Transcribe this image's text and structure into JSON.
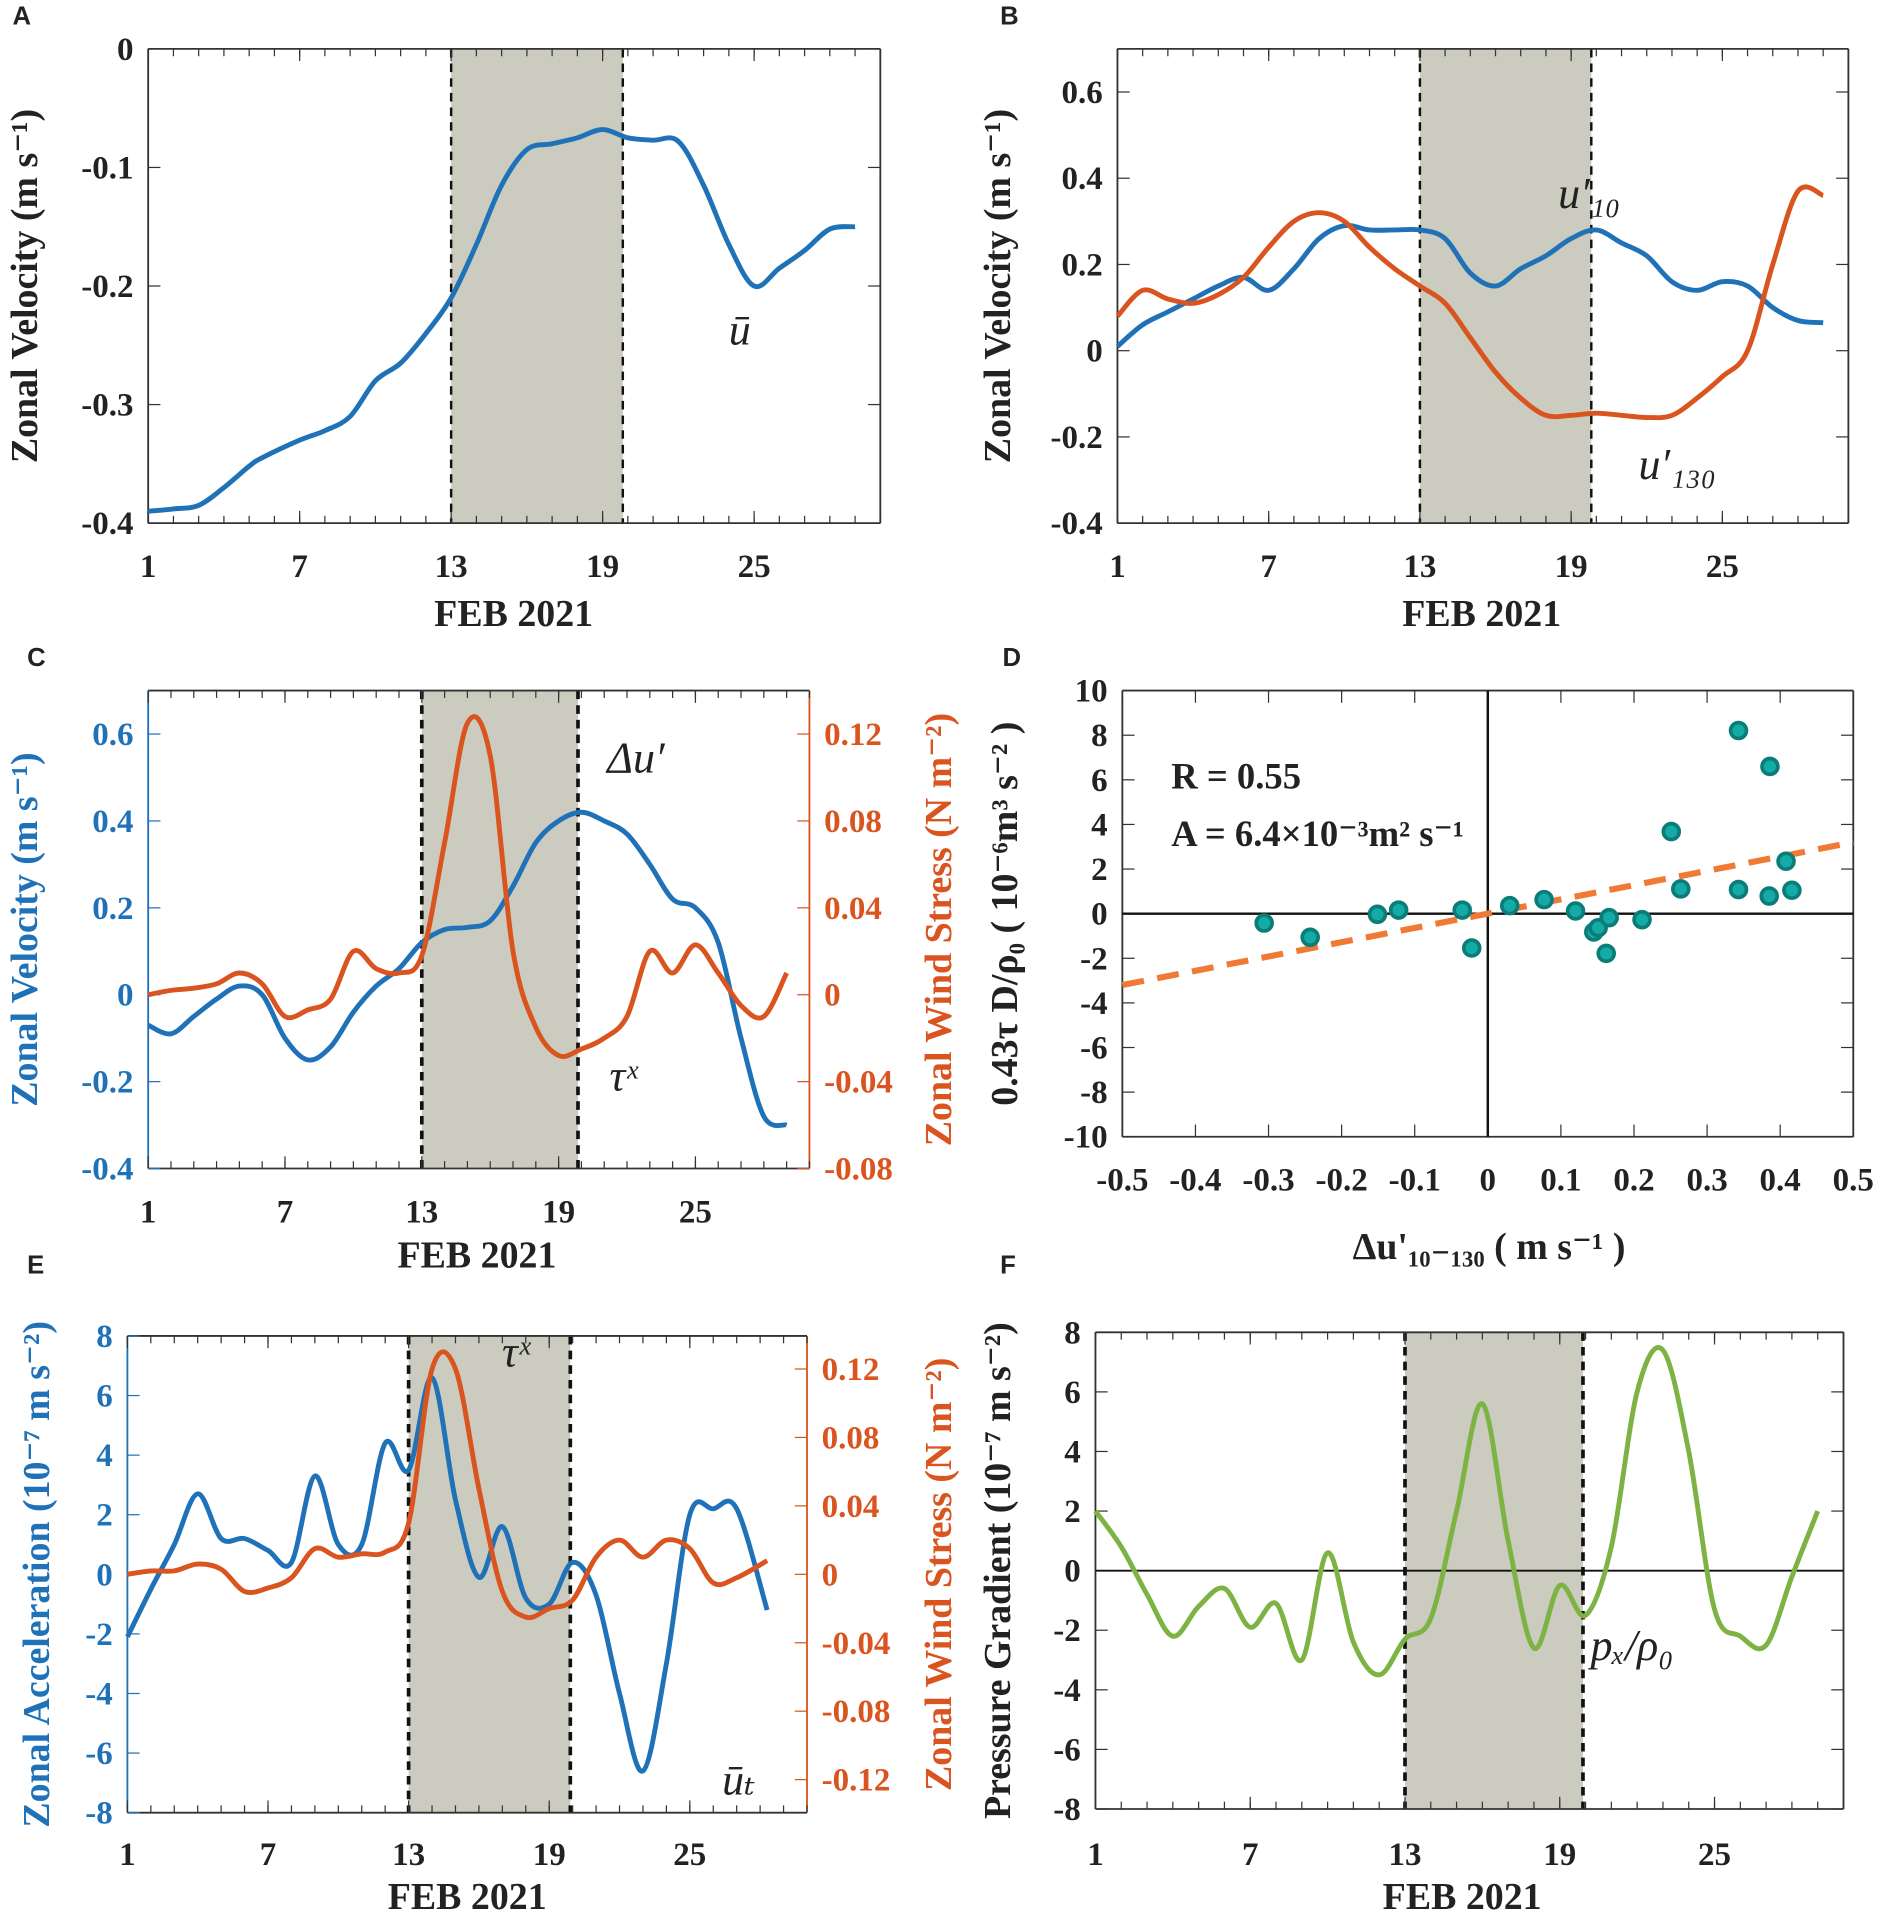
{
  "colors": {
    "blue": "#1f72b8",
    "orange": "#d9541e",
    "green": "#7cb342",
    "shade": "#cbcbbf",
    "teal": "#14aaa6",
    "teal_edge": "#0c7c78",
    "fit": "#f07a35"
  },
  "chart_data": [
    {
      "panel": "A",
      "type": "line",
      "xlabel": "FEB 2021",
      "ylabel": "Zonal Velocity (m s⁻¹)",
      "xlim": [
        1,
        30
      ],
      "ylim": [
        -0.4,
        0
      ],
      "xticks": [
        1,
        7,
        13,
        19,
        25
      ],
      "yticks": [
        0,
        -0.1,
        -0.2,
        -0.3,
        -0.4
      ],
      "ytick_labels": [
        "0",
        "-0.1",
        "-0.2",
        "-0.3",
        "-0.4"
      ],
      "shade": [
        13,
        19.8
      ],
      "series": [
        {
          "name": "ū",
          "color": "blue",
          "x": [
            1,
            2,
            3,
            4,
            5,
            5.5,
            7,
            8,
            9,
            10,
            11,
            12,
            13,
            14,
            15,
            16,
            17,
            18,
            19,
            20,
            21,
            22,
            23,
            24,
            25,
            26,
            27,
            28,
            29
          ],
          "values": [
            -0.39,
            -0.388,
            -0.385,
            -0.37,
            -0.352,
            -0.345,
            -0.33,
            -0.322,
            -0.31,
            -0.28,
            -0.265,
            -0.24,
            -0.21,
            -0.165,
            -0.115,
            -0.085,
            -0.08,
            -0.075,
            -0.068,
            -0.075,
            -0.077,
            -0.078,
            -0.115,
            -0.165,
            -0.2,
            -0.185,
            -0.17,
            -0.152,
            -0.15
          ]
        }
      ],
      "annotations": [
        "ū"
      ]
    },
    {
      "panel": "B",
      "type": "line",
      "xlabel": "FEB 2021",
      "ylabel": "Zonal Velocity (m s⁻¹)",
      "xlim": [
        1,
        30
      ],
      "ylim": [
        -0.4,
        0.7
      ],
      "xticks": [
        1,
        7,
        13,
        19,
        25
      ],
      "yticks": [
        0.6,
        0.4,
        0.2,
        0,
        -0.2,
        -0.4
      ],
      "ytick_labels": [
        "0.6",
        "0.4",
        "0.2",
        "0",
        "-0.2",
        "-0.4"
      ],
      "shade": [
        13,
        19.8
      ],
      "series": [
        {
          "name": "u′₁₀",
          "color": "blue",
          "x": [
            1,
            2,
            3,
            4,
            5,
            6,
            7,
            8,
            9,
            10,
            11,
            12,
            13,
            14,
            15,
            16,
            17,
            18,
            19,
            20,
            21,
            22,
            23,
            24,
            25,
            26,
            27,
            28,
            29
          ],
          "values": [
            0.01,
            0.06,
            0.09,
            0.12,
            0.15,
            0.17,
            0.14,
            0.19,
            0.26,
            0.29,
            0.28,
            0.28,
            0.28,
            0.26,
            0.18,
            0.15,
            0.19,
            0.22,
            0.26,
            0.28,
            0.25,
            0.22,
            0.16,
            0.14,
            0.16,
            0.15,
            0.1,
            0.07,
            0.065
          ]
        },
        {
          "name": "u′₁₃₀",
          "color": "orange",
          "x": [
            1,
            2,
            3,
            4,
            5,
            6,
            7,
            8,
            9,
            10,
            11,
            12,
            13,
            14,
            15,
            16,
            17,
            18,
            19,
            20,
            21,
            22,
            23,
            24,
            25,
            26,
            27,
            28,
            29
          ],
          "values": [
            0.08,
            0.14,
            0.12,
            0.11,
            0.13,
            0.17,
            0.24,
            0.3,
            0.32,
            0.3,
            0.24,
            0.19,
            0.15,
            0.11,
            0.03,
            -0.05,
            -0.11,
            -0.15,
            -0.15,
            -0.145,
            -0.15,
            -0.155,
            -0.15,
            -0.11,
            -0.06,
            0.0,
            0.2,
            0.37,
            0.36
          ]
        }
      ],
      "annotations": [
        "u′₁₀",
        "u′₁₃₀"
      ]
    },
    {
      "panel": "C",
      "type": "line",
      "xlabel": "FEB 2021",
      "ylabel": "Zonal Velocity (m s⁻¹)",
      "ylabel_right": "Zonal Wind Stress (N m⁻²)",
      "xlim": [
        1,
        30
      ],
      "ylim": [
        -0.4,
        0.7
      ],
      "ylim_right": [
        -0.08,
        0.14
      ],
      "xticks": [
        1,
        7,
        13,
        19,
        25
      ],
      "yticks": [
        0.6,
        0.4,
        0.2,
        0,
        -0.2,
        -0.4
      ],
      "ytick_labels": [
        "0.6",
        "0.4",
        "0.2",
        "0",
        "-0.2",
        "-0.4"
      ],
      "yticks_right": [
        0.12,
        0.08,
        0.04,
        0,
        -0.04,
        -0.08
      ],
      "ytick_labels_right": [
        "0.12",
        "0.08",
        "0.04",
        "0",
        "-0.04",
        "-0.08"
      ],
      "shade": [
        13,
        19.85
      ],
      "series": [
        {
          "name": "Δu′",
          "color": "blue",
          "axis": "left",
          "x": [
            1,
            2,
            3,
            4,
            5,
            6,
            7,
            8,
            9,
            10,
            11,
            12,
            13,
            14,
            15,
            16,
            17,
            18,
            19,
            20,
            21,
            22,
            23,
            24,
            25,
            26,
            27,
            28,
            29
          ],
          "values": [
            -0.07,
            -0.09,
            -0.05,
            -0.01,
            0.02,
            0.0,
            -0.1,
            -0.15,
            -0.12,
            -0.04,
            0.02,
            0.06,
            0.12,
            0.15,
            0.155,
            0.17,
            0.25,
            0.35,
            0.4,
            0.42,
            0.4,
            0.37,
            0.3,
            0.22,
            0.2,
            0.12,
            -0.1,
            -0.28,
            -0.3
          ]
        },
        {
          "name": "τˣ",
          "color": "orange",
          "axis": "right",
          "x": [
            1,
            2,
            3,
            4,
            5,
            6,
            7,
            8,
            9,
            10,
            11,
            12,
            13,
            14,
            15,
            16,
            17,
            18,
            19,
            20,
            21,
            22,
            23,
            24,
            25,
            26,
            27,
            28,
            29
          ],
          "values": [
            0.0,
            0.002,
            0.003,
            0.005,
            0.01,
            0.005,
            -0.01,
            -0.007,
            -0.002,
            0.02,
            0.012,
            0.01,
            0.018,
            0.07,
            0.125,
            0.11,
            0.02,
            -0.015,
            -0.028,
            -0.025,
            -0.02,
            -0.01,
            0.02,
            0.01,
            0.023,
            0.01,
            -0.005,
            -0.01,
            0.01
          ]
        }
      ],
      "annotations": [
        "Δu′",
        "τˣ"
      ]
    },
    {
      "panel": "D",
      "type": "scatter",
      "xlabel": "Δu'₁₀₋₁₃₀ ( m s⁻¹ )",
      "ylabel": "0.43τ D/ρ₀ ( 10⁻⁶m³ s⁻² )",
      "xlim": [
        -0.5,
        0.5
      ],
      "ylim": [
        -10,
        10
      ],
      "xticks": [
        -0.5,
        -0.4,
        -0.3,
        -0.2,
        -0.1,
        0,
        0.1,
        0.2,
        0.3,
        0.4,
        0.5
      ],
      "xtick_labels": [
        "-0.5",
        "-0.4",
        "-0.3",
        "-0.2",
        "-0.1",
        "0",
        "0.1",
        "0.2",
        "0.3",
        "0.4",
        "0.5"
      ],
      "yticks": [
        10,
        8,
        6,
        4,
        2,
        0,
        -2,
        -4,
        -6,
        -8,
        -10
      ],
      "ytick_labels": [
        "10",
        "8",
        "6",
        "4",
        "2",
        "0",
        "-2",
        "-4",
        "-6",
        "-8",
        "-10"
      ],
      "points": [
        [
          -0.306,
          -0.42
        ],
        [
          -0.243,
          -1.06
        ],
        [
          -0.151,
          -0.03
        ],
        [
          -0.122,
          0.16
        ],
        [
          -0.035,
          0.16
        ],
        [
          -0.022,
          -1.54
        ],
        [
          0.03,
          0.36
        ],
        [
          0.077,
          0.63
        ],
        [
          0.12,
          0.12
        ],
        [
          0.145,
          -0.82
        ],
        [
          0.151,
          -0.63
        ],
        [
          0.166,
          -0.18
        ],
        [
          0.162,
          -1.78
        ],
        [
          0.211,
          -0.27
        ],
        [
          0.251,
          3.68
        ],
        [
          0.264,
          1.11
        ],
        [
          0.343,
          8.21
        ],
        [
          0.343,
          1.08
        ],
        [
          0.386,
          6.6
        ],
        [
          0.385,
          0.79
        ],
        [
          0.408,
          2.35
        ],
        [
          0.416,
          1.05
        ]
      ],
      "fit": {
        "slope": 6.4,
        "intercept": 0
      },
      "stats": {
        "r": "R = 0.55",
        "a": "A = 6.4×10⁻³m² s⁻¹"
      }
    },
    {
      "panel": "E",
      "type": "line",
      "xlabel": "FEB 2021",
      "ylabel": "Zonal Acceleration (10⁻⁷ m s⁻²)",
      "ylabel_right": "Zonal Wind Stress (N m⁻²)",
      "xlim": [
        1,
        30
      ],
      "ylim": [
        -8,
        8
      ],
      "ylim_right": [
        -0.1393,
        0.1393
      ],
      "xticks": [
        1,
        7,
        13,
        19,
        25
      ],
      "yticks": [
        8,
        6,
        4,
        2,
        0,
        -2,
        -4,
        -6,
        -8
      ],
      "ytick_labels": [
        "8",
        "6",
        "4",
        "2",
        "0",
        "-2",
        "-4",
        "-6",
        "-8"
      ],
      "yticks_right": [
        0.12,
        0.08,
        0.04,
        0,
        -0.04,
        -0.08,
        -0.12
      ],
      "ytick_labels_right": [
        "0.12",
        "0.08",
        "0.04",
        "0",
        "-0.04",
        "-0.08",
        "-0.12"
      ],
      "shade": [
        13,
        19.9
      ],
      "series": [
        {
          "name": "ūₜ",
          "color": "blue",
          "axis": "left",
          "x": [
            1,
            2,
            3,
            4,
            5,
            6,
            7,
            8,
            9,
            10,
            11,
            12,
            13,
            14,
            15,
            16,
            17,
            18,
            19,
            20,
            21,
            22,
            23,
            24,
            25,
            26,
            27,
            28.3
          ],
          "values": [
            -2.1,
            -0.5,
            1.0,
            2.7,
            1.2,
            1.2,
            0.8,
            0.4,
            3.3,
            1.0,
            1.0,
            4.4,
            3.5,
            6.6,
            2.5,
            -0.1,
            1.6,
            -0.8,
            -1.0,
            0.4,
            -0.7,
            -4.0,
            -6.6,
            -3.0,
            2.0,
            2.2,
            2.2,
            -1.2
          ]
        },
        {
          "name": "τˣ",
          "color": "orange",
          "axis": "right",
          "x": [
            1,
            2,
            3,
            4,
            5,
            6,
            7,
            8,
            9,
            10,
            11,
            12,
            13,
            14,
            15,
            16,
            17,
            18,
            19,
            20,
            21,
            22,
            23,
            24,
            25,
            26,
            27,
            28.3
          ],
          "values": [
            0.0,
            0.002,
            0.002,
            0.006,
            0.003,
            -0.01,
            -0.008,
            -0.002,
            0.015,
            0.01,
            0.012,
            0.013,
            0.03,
            0.12,
            0.12,
            0.05,
            -0.01,
            -0.025,
            -0.02,
            -0.015,
            0.01,
            0.02,
            0.01,
            0.02,
            0.015,
            -0.005,
            -0.002,
            0.008
          ]
        }
      ],
      "annotations": [
        "τˣ",
        "ūₜ"
      ]
    },
    {
      "panel": "F",
      "type": "line",
      "xlabel": "FEB 2021",
      "ylabel": "Pressure Gradient (10⁻⁷ m s⁻²)",
      "xlim": [
        1,
        30
      ],
      "ylim": [
        -8,
        8
      ],
      "xticks": [
        1,
        7,
        13,
        19,
        25
      ],
      "yticks": [
        8,
        6,
        4,
        2,
        0,
        -2,
        -4,
        -6,
        -8
      ],
      "ytick_labels": [
        "8",
        "6",
        "4",
        "2",
        "0",
        "-2",
        "-4",
        "-6",
        "-8"
      ],
      "shade": [
        13,
        19.9
      ],
      "series": [
        {
          "name": "pₓ/ρ₀",
          "color": "green",
          "x": [
            1,
            2,
            3,
            4,
            5,
            6,
            7,
            8,
            9,
            10,
            11,
            12,
            13,
            14,
            15,
            16,
            17,
            18,
            19,
            20,
            21,
            22,
            23,
            24,
            25,
            26,
            27,
            28,
            29
          ],
          "values": [
            2.0,
            0.8,
            -0.8,
            -2.2,
            -1.2,
            -0.6,
            -1.9,
            -1.1,
            -3.0,
            0.6,
            -2.4,
            -3.5,
            -2.3,
            -1.6,
            2.0,
            5.6,
            1.0,
            -2.6,
            -0.5,
            -1.5,
            0.8,
            6.0,
            7.4,
            4.0,
            -1.3,
            -2.2,
            -2.5,
            -0.2,
            2.0
          ]
        }
      ],
      "annotations": [
        "pₓ/ρ₀"
      ]
    }
  ]
}
